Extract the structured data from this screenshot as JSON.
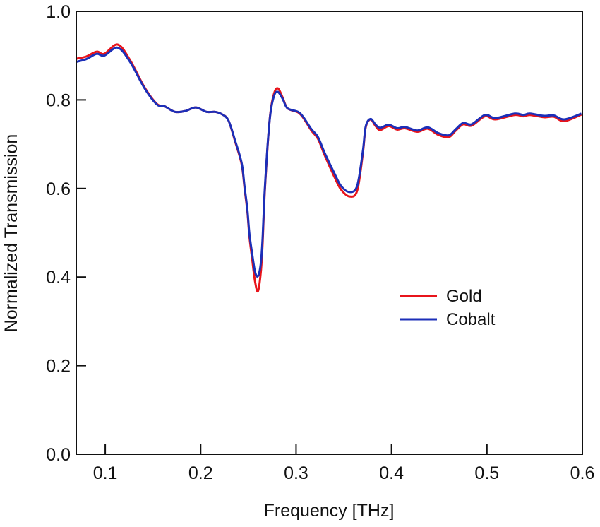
{
  "chart_data": {
    "type": "line",
    "title": "",
    "xlabel": "Frequency [THz]",
    "ylabel": "Normalized Transmission",
    "xlim": [
      0.0696,
      0.6
    ],
    "ylim": [
      0.0,
      1.0
    ],
    "xticks": [
      0.1,
      0.2,
      0.3,
      0.4,
      0.5,
      0.6
    ],
    "xtick_labels": [
      "0.1",
      "0.2",
      "0.3",
      "0.4",
      "0.5",
      "0.6"
    ],
    "yticks": [
      0.0,
      0.2,
      0.4,
      0.6,
      0.8,
      1.0
    ],
    "ytick_labels": [
      "0.0",
      "0.2",
      "0.4",
      "0.6",
      "0.8",
      "1.0"
    ],
    "grid": false,
    "legend_position": "center-right",
    "series": [
      {
        "name": "Gold",
        "color": "#e8141b",
        "x": [
          0.0696,
          0.08,
          0.091,
          0.099,
          0.113,
          0.126,
          0.141,
          0.154,
          0.162,
          0.173,
          0.184,
          0.195,
          0.206,
          0.215,
          0.222,
          0.229,
          0.236,
          0.243,
          0.246,
          0.249,
          0.251,
          0.254,
          0.257,
          0.26,
          0.263,
          0.265,
          0.267,
          0.27,
          0.273,
          0.277,
          0.281,
          0.286,
          0.291,
          0.302,
          0.308,
          0.316,
          0.323,
          0.33,
          0.34,
          0.347,
          0.356,
          0.364,
          0.37,
          0.373,
          0.378,
          0.383,
          0.388,
          0.397,
          0.406,
          0.414,
          0.427,
          0.438,
          0.449,
          0.46,
          0.467,
          0.475,
          0.484,
          0.498,
          0.509,
          0.529,
          0.538,
          0.545,
          0.56,
          0.57,
          0.581,
          0.599
        ],
        "y": [
          0.893,
          0.898,
          0.909,
          0.904,
          0.925,
          0.89,
          0.829,
          0.791,
          0.786,
          0.773,
          0.775,
          0.783,
          0.773,
          0.773,
          0.768,
          0.754,
          0.707,
          0.654,
          0.6,
          0.547,
          0.494,
          0.44,
          0.39,
          0.368,
          0.41,
          0.478,
          0.584,
          0.691,
          0.77,
          0.815,
          0.826,
          0.805,
          0.781,
          0.772,
          0.758,
          0.731,
          0.712,
          0.675,
          0.627,
          0.598,
          0.582,
          0.595,
          0.68,
          0.738,
          0.756,
          0.742,
          0.732,
          0.741,
          0.733,
          0.736,
          0.728,
          0.735,
          0.721,
          0.716,
          0.73,
          0.745,
          0.742,
          0.763,
          0.756,
          0.766,
          0.763,
          0.766,
          0.761,
          0.762,
          0.752,
          0.767
        ]
      },
      {
        "name": "Cobalt",
        "color": "#1c2fb8",
        "x": [
          0.0696,
          0.08,
          0.091,
          0.099,
          0.113,
          0.126,
          0.141,
          0.154,
          0.162,
          0.173,
          0.184,
          0.195,
          0.206,
          0.215,
          0.222,
          0.229,
          0.236,
          0.243,
          0.246,
          0.249,
          0.251,
          0.254,
          0.257,
          0.26,
          0.263,
          0.265,
          0.267,
          0.27,
          0.273,
          0.277,
          0.281,
          0.286,
          0.291,
          0.302,
          0.308,
          0.316,
          0.323,
          0.33,
          0.34,
          0.347,
          0.356,
          0.364,
          0.37,
          0.373,
          0.378,
          0.383,
          0.388,
          0.397,
          0.406,
          0.414,
          0.427,
          0.438,
          0.449,
          0.46,
          0.467,
          0.475,
          0.484,
          0.498,
          0.509,
          0.529,
          0.538,
          0.545,
          0.56,
          0.57,
          0.581,
          0.599
        ],
        "y": [
          0.886,
          0.892,
          0.904,
          0.9,
          0.918,
          0.886,
          0.827,
          0.79,
          0.786,
          0.773,
          0.775,
          0.783,
          0.773,
          0.773,
          0.768,
          0.754,
          0.709,
          0.657,
          0.604,
          0.552,
          0.5,
          0.452,
          0.412,
          0.402,
          0.43,
          0.49,
          0.59,
          0.694,
          0.768,
          0.81,
          0.818,
          0.802,
          0.781,
          0.773,
          0.76,
          0.734,
          0.716,
          0.68,
          0.635,
          0.606,
          0.592,
          0.606,
          0.685,
          0.74,
          0.757,
          0.745,
          0.737,
          0.744,
          0.736,
          0.739,
          0.731,
          0.738,
          0.725,
          0.72,
          0.733,
          0.748,
          0.745,
          0.766,
          0.759,
          0.769,
          0.766,
          0.769,
          0.764,
          0.765,
          0.756,
          0.769
        ]
      }
    ]
  }
}
